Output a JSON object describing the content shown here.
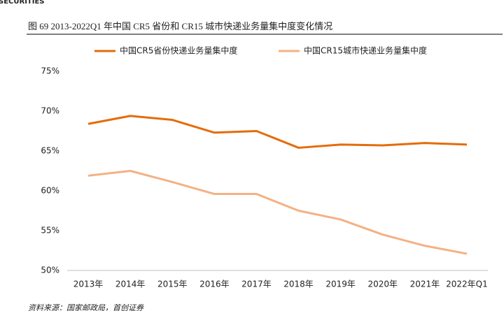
{
  "header": "SECURITIES",
  "chart_data": {
    "type": "line",
    "title": "图 69 2013-2022Q1 年中国 CR5 省份和 CR15 城市快递业务量集中度变化情况",
    "categories": [
      "2013年",
      "2014年",
      "2015年",
      "2016年",
      "2017年",
      "2018年",
      "2019年",
      "2020年",
      "2021年",
      "2022年Q1"
    ],
    "series": [
      {
        "name": "中国CR5省份快递业务量集中度",
        "color": "#e46c0a",
        "values": [
          68.4,
          69.4,
          68.9,
          67.3,
          67.5,
          65.4,
          65.8,
          65.7,
          66.0,
          65.8
        ]
      },
      {
        "name": "中国CR15城市快递业务量集中度",
        "color": "#f4b183",
        "values": [
          61.9,
          62.5,
          61.1,
          59.6,
          59.6,
          57.5,
          56.4,
          54.5,
          53.1,
          52.1
        ]
      }
    ],
    "ylim": [
      50,
      75
    ],
    "yticks": [
      {
        "value": 50,
        "label": "50%"
      },
      {
        "value": 55,
        "label": "55%"
      },
      {
        "value": 60,
        "label": "60%"
      },
      {
        "value": 65,
        "label": "65%"
      },
      {
        "value": 70,
        "label": "70%"
      },
      {
        "value": 75,
        "label": "75%"
      }
    ],
    "grid": false,
    "legend": "top"
  },
  "source": "资料来源：国家邮政局，首创证券"
}
